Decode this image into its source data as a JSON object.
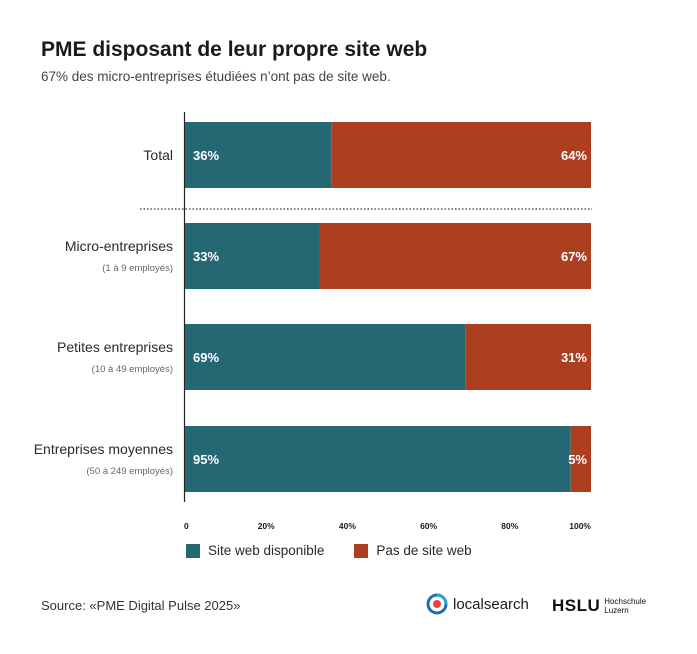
{
  "header": {
    "title": "PME disposant de leur propre site web",
    "subtitle": "67% des micro-entreprises étudiées n’ont pas de site web."
  },
  "colors": {
    "site_web": "#256873",
    "pas_de_site": "#ad3f21"
  },
  "chart_data": {
    "type": "bar",
    "orientation": "horizontal",
    "stacked": true,
    "categories": [
      {
        "label": "Total",
        "sub": ""
      },
      {
        "label": "Micro-entreprises",
        "sub": "(1 à 9 employés)"
      },
      {
        "label": "Petites entreprises",
        "sub": "(10 à 49 employés)"
      },
      {
        "label": "Entreprises moyennes",
        "sub": "(50 à 249 employés)"
      }
    ],
    "series": [
      {
        "name": "Site web disponible",
        "values": [
          36,
          33,
          69,
          95
        ],
        "labels": [
          "36%",
          "33%",
          "69%",
          "95%"
        ]
      },
      {
        "name": "Pas de site web",
        "values": [
          64,
          67,
          31,
          5
        ],
        "labels": [
          "64%",
          "67%",
          "31%",
          "5%"
        ]
      }
    ],
    "xticks": [
      "0",
      "20%",
      "40%",
      "60%",
      "80%",
      "100%"
    ],
    "xlim": [
      0,
      100
    ],
    "grid": false,
    "legend_position": "bottom-left"
  },
  "legend": {
    "items": [
      "Site web disponible",
      "Pas de site web"
    ]
  },
  "footer": {
    "source": "Source: «PME Digital Pulse 2025»",
    "logo_localsearch": "localsearch",
    "logo_hslu": "HSLU",
    "logo_hslu_sub1": "Hochschule",
    "logo_hslu_sub2": "Luzern"
  }
}
